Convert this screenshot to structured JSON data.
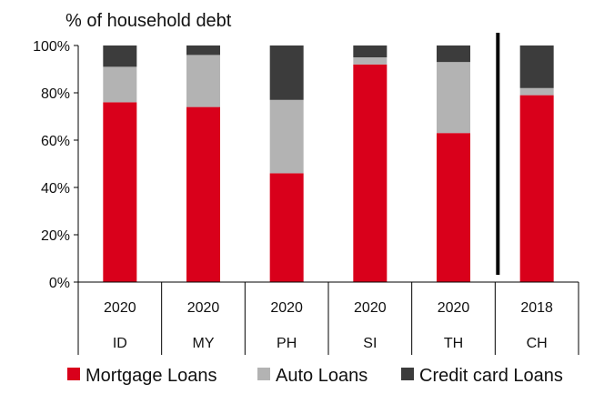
{
  "chart_data": {
    "type": "bar",
    "stacked": true,
    "title": "% of household debt",
    "categories": [
      "ID",
      "MY",
      "PH",
      "SI",
      "TH",
      "CH"
    ],
    "years": [
      "2020",
      "2020",
      "2020",
      "2020",
      "2020",
      "2018"
    ],
    "series": [
      {
        "name": "Mortgage Loans",
        "color": "#d9001b",
        "values": [
          76,
          74,
          46,
          92,
          63,
          79
        ]
      },
      {
        "name": "Auto Loans",
        "color": "#b3b3b3",
        "values": [
          15,
          22,
          31,
          3,
          30,
          3
        ]
      },
      {
        "name": "Credit card Loans",
        "color": "#3c3c3c",
        "values": [
          9,
          4,
          23,
          5,
          7,
          18
        ]
      }
    ],
    "y_ticks": [
      "0%",
      "20%",
      "40%",
      "60%",
      "80%",
      "100%"
    ],
    "ylim": [
      0,
      100
    ],
    "grid": false,
    "legend_position": "bottom",
    "separator_before_category": "CH"
  }
}
